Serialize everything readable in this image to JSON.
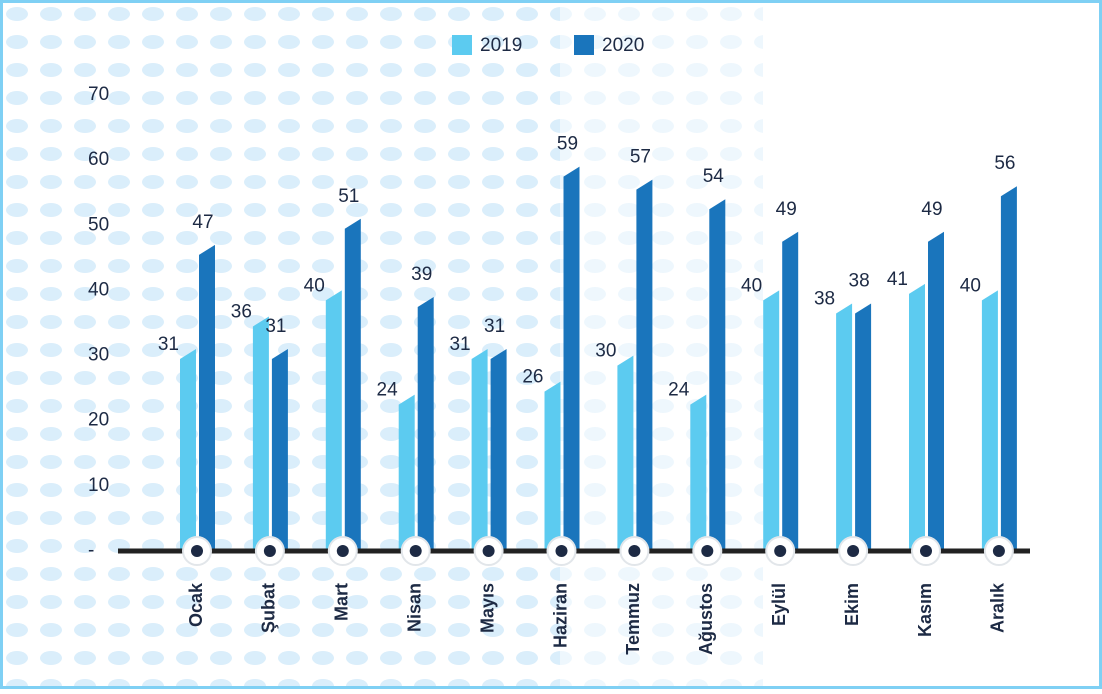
{
  "chart_data": {
    "type": "bar",
    "categories": [
      "Ocak",
      "Şubat",
      "Mart",
      "Nisan",
      "Mayıs",
      "Haziran",
      "Temmuz",
      "Ağustos",
      "Eylül",
      "Ekim",
      "Kasım",
      "Aralık"
    ],
    "series": [
      {
        "name": "2019",
        "color": "#5ccbf0",
        "values": [
          31,
          36,
          40,
          24,
          31,
          26,
          30,
          24,
          40,
          38,
          41,
          40
        ]
      },
      {
        "name": "2020",
        "color": "#1a75bc",
        "values": [
          47,
          31,
          51,
          39,
          31,
          59,
          57,
          54,
          49,
          38,
          49,
          56
        ]
      }
    ],
    "ylim": [
      0,
      70
    ],
    "yticks": [
      {
        "value": 0,
        "label": "-"
      },
      10,
      20,
      30,
      40,
      50,
      60,
      70
    ],
    "legend": "top"
  }
}
